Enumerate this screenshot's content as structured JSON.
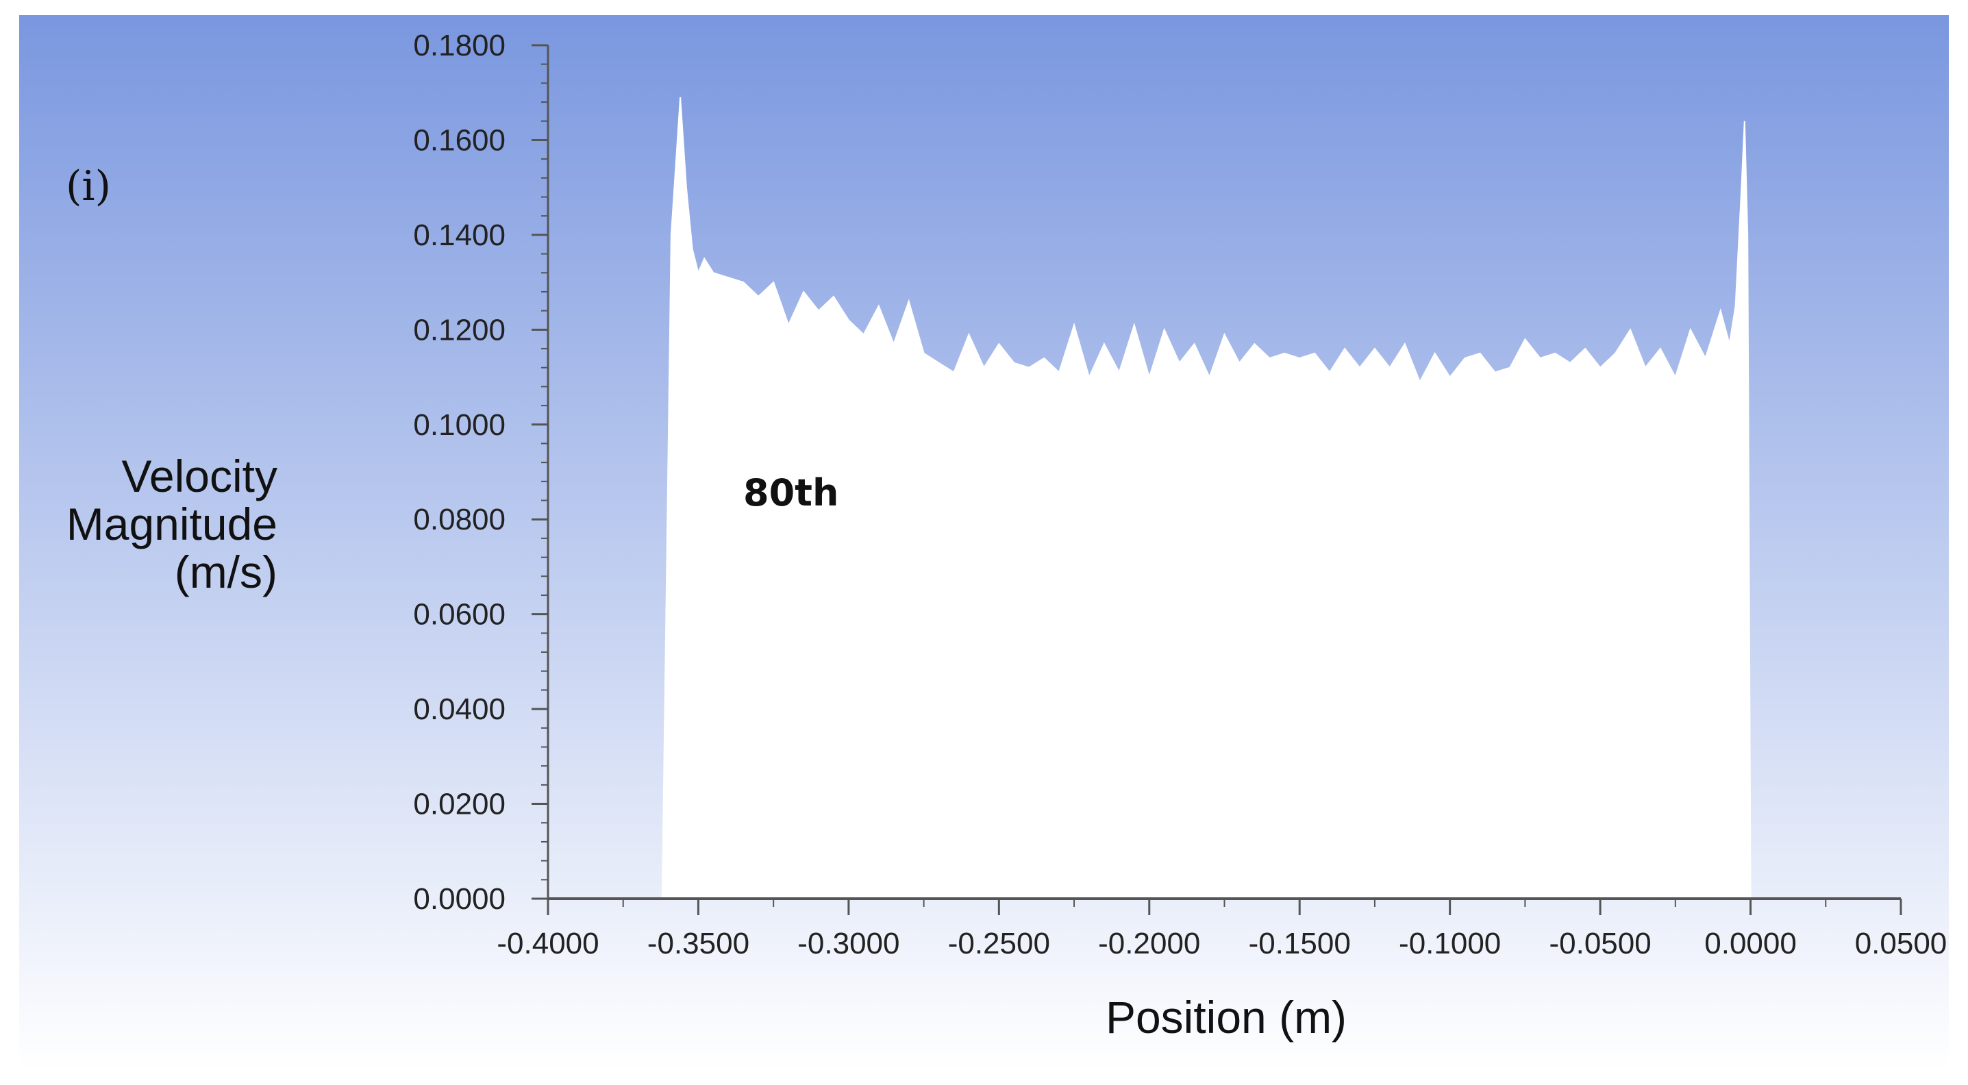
{
  "panel_label": "(i)",
  "colors": {
    "background_top": "#7a97df",
    "background_bottom": "#ffffff",
    "fill": "#ffffff",
    "axis": "#555555"
  },
  "chart_data": {
    "type": "area",
    "title": "",
    "xlabel": "Position (m)",
    "ylabel_lines": [
      "Velocity",
      "Magnitude",
      "(m/s)"
    ],
    "annotation": "80th",
    "xlim": [
      -0.4,
      0.05
    ],
    "ylim": [
      0,
      0.18
    ],
    "xticks": [
      -0.4,
      -0.35,
      -0.3,
      -0.25,
      -0.2,
      -0.15,
      -0.1,
      -0.05,
      0.0,
      0.05
    ],
    "xtick_labels": [
      "-0.4000",
      "-0.3500",
      "-0.3000",
      "-0.2500",
      "-0.2000",
      "-0.1500",
      "-0.1000",
      "-0.0500",
      "0.0000",
      "0.0500"
    ],
    "yticks": [
      0,
      0.02,
      0.04,
      0.06,
      0.08,
      0.1,
      0.12,
      0.14,
      0.16,
      0.18
    ],
    "ytick_labels": [
      "0.0000",
      "0.0200",
      "0.0400",
      "0.0600",
      "0.0800",
      "0.1000",
      "0.1200",
      "0.1400",
      "0.1600",
      "0.1800"
    ],
    "grid": false,
    "series": [
      {
        "x": [
          -0.362,
          -0.359,
          -0.356,
          -0.354,
          -0.352,
          -0.35,
          -0.348,
          -0.345,
          -0.34,
          -0.335,
          -0.33,
          -0.325,
          -0.32,
          -0.315,
          -0.31,
          -0.305,
          -0.3,
          -0.295,
          -0.29,
          -0.285,
          -0.28,
          -0.275,
          -0.27,
          -0.265,
          -0.26,
          -0.255,
          -0.25,
          -0.245,
          -0.24,
          -0.235,
          -0.23,
          -0.225,
          -0.22,
          -0.215,
          -0.21,
          -0.205,
          -0.2,
          -0.195,
          -0.19,
          -0.185,
          -0.18,
          -0.175,
          -0.17,
          -0.165,
          -0.16,
          -0.155,
          -0.15,
          -0.145,
          -0.14,
          -0.135,
          -0.13,
          -0.125,
          -0.12,
          -0.115,
          -0.11,
          -0.105,
          -0.1,
          -0.095,
          -0.09,
          -0.085,
          -0.08,
          -0.075,
          -0.07,
          -0.065,
          -0.06,
          -0.055,
          -0.05,
          -0.045,
          -0.04,
          -0.035,
          -0.03,
          -0.025,
          -0.02,
          -0.015,
          -0.01,
          -0.007,
          -0.005,
          -0.003,
          -0.002,
          -0.001,
          0.0
        ],
        "y": [
          0,
          0.14,
          0.169,
          0.15,
          0.137,
          0.132,
          0.135,
          0.132,
          0.131,
          0.13,
          0.127,
          0.13,
          0.121,
          0.128,
          0.124,
          0.127,
          0.122,
          0.119,
          0.125,
          0.117,
          0.126,
          0.115,
          0.113,
          0.111,
          0.119,
          0.112,
          0.117,
          0.113,
          0.112,
          0.114,
          0.111,
          0.121,
          0.11,
          0.117,
          0.111,
          0.121,
          0.11,
          0.12,
          0.113,
          0.117,
          0.11,
          0.119,
          0.113,
          0.117,
          0.114,
          0.115,
          0.114,
          0.115,
          0.111,
          0.116,
          0.112,
          0.116,
          0.112,
          0.117,
          0.109,
          0.115,
          0.11,
          0.114,
          0.115,
          0.111,
          0.112,
          0.118,
          0.114,
          0.115,
          0.113,
          0.116,
          0.112,
          0.115,
          0.12,
          0.112,
          0.116,
          0.11,
          0.12,
          0.114,
          0.124,
          0.117,
          0.125,
          0.15,
          0.164,
          0.14,
          0
        ]
      }
    ]
  }
}
